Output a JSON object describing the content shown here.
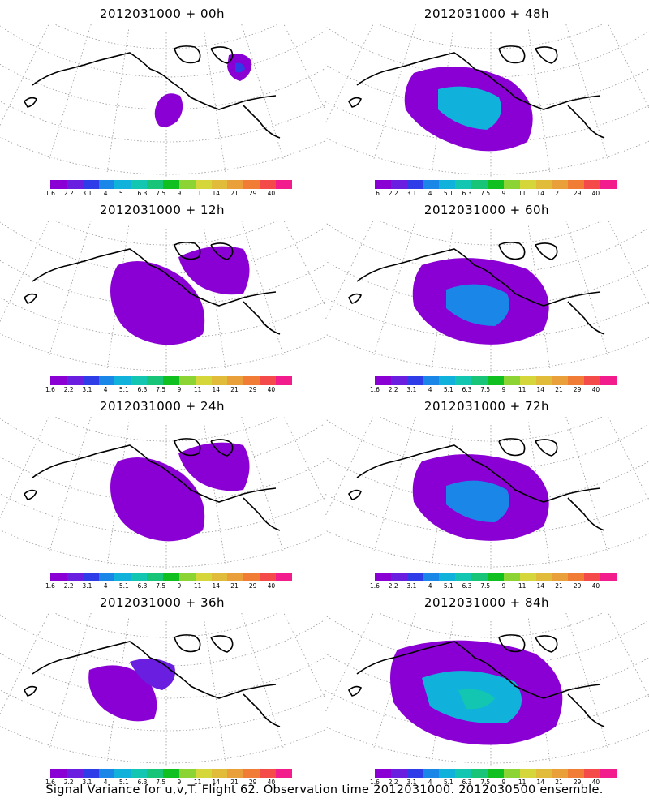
{
  "colorbar": {
    "colors": [
      "#8a00d4",
      "#6a1ee0",
      "#2f3de8",
      "#1a86e8",
      "#10b2dc",
      "#12c6b2",
      "#18c478",
      "#10c020",
      "#8bd434",
      "#d4d63a",
      "#e0bc3a",
      "#eaa03a",
      "#f07c36",
      "#f44a4a",
      "#f21c8c"
    ],
    "labels": [
      "1.6",
      "2.2",
      "3.1",
      "4",
      "5.1",
      "6.3",
      "7.5",
      "9",
      "11",
      "14",
      "21",
      "29",
      "40"
    ]
  },
  "panels": [
    {
      "title": "2012031000 + 00h",
      "level": 0
    },
    {
      "title": "2012031000 + 48h",
      "level": 3
    },
    {
      "title": "2012031000 + 12h",
      "level": 1
    },
    {
      "title": "2012031000 + 60h",
      "level": 4
    },
    {
      "title": "2012031000 + 24h",
      "level": 1
    },
    {
      "title": "2012031000 + 72h",
      "level": 4
    },
    {
      "title": "2012031000 + 36h",
      "level": 2
    },
    {
      "title": "2012031000 + 84h",
      "level": 5
    }
  ],
  "footer": "Signal Variance for u,v,T. Flight 62. Observation time 2012031000. 2012030500 ensemble."
}
